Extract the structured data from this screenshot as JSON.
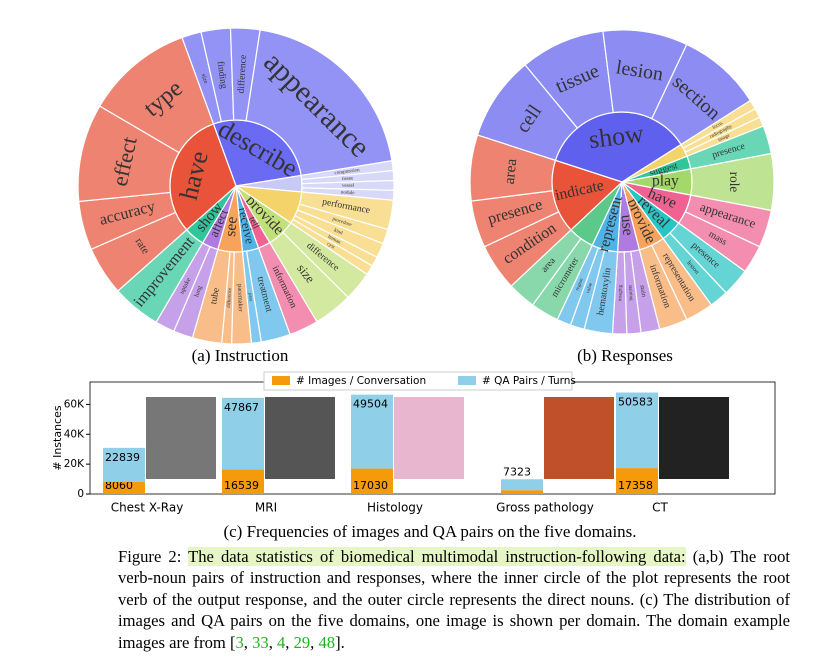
{
  "chart_data": [
    {
      "type": "sunburst",
      "caption": "(a) Instruction",
      "inner": [
        {
          "name": "describe",
          "color": "#6a6af2",
          "value": 28,
          "children": [
            {
              "name": "size",
              "value": 2
            },
            {
              "name": "finding",
              "value": 3
            },
            {
              "name": "difference",
              "value": 3
            },
            {
              "name": "appearance",
              "value": 20
            }
          ]
        },
        {
          "name": null,
          "color": "#c9c9f5",
          "value": 4,
          "children": [
            {
              "name": "compression",
              "value": 1
            },
            {
              "name": "tissue",
              "value": 1
            },
            {
              "name": "vessel",
              "value": 1
            },
            {
              "name": "nodule",
              "value": 1
            }
          ]
        },
        {
          "name": null,
          "color": "#f5d36b",
          "value": 8,
          "children": [
            {
              "name": "performance",
              "value": 3
            },
            {
              "name": "procedure",
              "value": 1.5
            },
            {
              "name": "kind",
              "value": 1.5
            },
            {
              "name": "human",
              "value": 1
            },
            {
              "name": "cyst",
              "value": 1
            }
          ]
        },
        {
          "name": "provide",
          "color": "#c2e07a",
          "value": 7,
          "children": [
            {
              "name": "difference",
              "value": 3
            },
            {
              "name": "size",
              "value": 4
            }
          ]
        },
        {
          "name": "tell",
          "color": "#f06292",
          "value": 3,
          "children": [
            {
              "name": "information",
              "value": 3
            }
          ]
        },
        {
          "name": "receive",
          "color": "#4fb3e8",
          "value": 4,
          "children": [
            {
              "name": "treatment",
              "value": 3
            },
            {
              "name": "pass",
              "value": 1
            }
          ]
        },
        {
          "name": "see",
          "color": "#f7a35c",
          "value": 6,
          "children": [
            {
              "name": "pacemaker",
              "value": 2
            },
            {
              "name": "difference",
              "value": 1
            },
            {
              "name": "tube",
              "value": 3
            }
          ]
        },
        {
          "name": "affect",
          "color": "#b07be0",
          "value": 4,
          "children": [
            {
              "name": "lung",
              "value": 2
            },
            {
              "name": "uptake",
              "value": 2
            }
          ]
        },
        {
          "name": "show",
          "color": "#2fc79a",
          "value": 5,
          "children": [
            {
              "name": "improvement",
              "value": 5
            }
          ]
        },
        {
          "name": "have",
          "color": "#e8533a",
          "value": 31,
          "children": [
            {
              "name": "rate",
              "value": 5
            },
            {
              "name": "accuracy",
              "value": 5
            },
            {
              "name": "effect",
              "value": 10
            },
            {
              "name": "type",
              "value": 11
            }
          ]
        }
      ]
    },
    {
      "type": "sunburst",
      "caption": "(b) Responses",
      "inner": [
        {
          "name": "show",
          "color": "#6060ee",
          "value": 36,
          "children": [
            {
              "name": "cell",
              "value": 9
            },
            {
              "name": "tissue",
              "value": 9
            },
            {
              "name": "lesion",
              "value": 9
            },
            {
              "name": "section",
              "value": 9
            }
          ]
        },
        {
          "name": null,
          "color": "#f5d36b",
          "value": 3,
          "children": [
            {
              "name": "focus",
              "value": 1
            },
            {
              "name": "radiography",
              "value": 1
            },
            {
              "name": "image",
              "value": 1
            }
          ]
        },
        {
          "name": "suggest",
          "color": "#2fc79a",
          "value": 3,
          "children": [
            {
              "name": "presence",
              "value": 3
            }
          ]
        },
        {
          "name": "play",
          "color": "#a5d86a",
          "value": 6,
          "children": [
            {
              "name": "role",
              "value": 6
            }
          ]
        },
        {
          "name": "have",
          "color": "#f06292",
          "value": 7,
          "children": [
            {
              "name": "appearance",
              "value": 4
            },
            {
              "name": "mass",
              "value": 3
            }
          ]
        },
        {
          "name": "reveal",
          "color": "#29c4c4",
          "value": 5,
          "children": [
            {
              "name": "presence",
              "value": 3
            },
            {
              "name": "lesion",
              "value": 2
            }
          ]
        },
        {
          "name": "provide",
          "color": "#f7a35c",
          "value": 6,
          "children": [
            {
              "name": "representation",
              "value": 3
            },
            {
              "name": "information",
              "value": 3
            }
          ]
        },
        {
          "name": "use",
          "color": "#b07be0",
          "value": 5,
          "children": [
            {
              "name": "stain",
              "value": 2
            },
            {
              "name": "staining",
              "value": 1.5
            },
            {
              "name": "imaging",
              "value": 1.5
            }
          ]
        },
        {
          "name": "represent",
          "color": "#4fb3e8",
          "value": 6,
          "children": [
            {
              "name": "hematoxylin",
              "value": 3
            },
            {
              "name": "value",
              "value": 1.5
            },
            {
              "name": "region",
              "value": 1.5
            }
          ]
        },
        {
          "name": null,
          "color": "#5cc98a",
          "value": 6,
          "children": [
            {
              "name": "micrometer",
              "value": 3
            },
            {
              "name": "area",
              "value": 3
            }
          ]
        },
        {
          "name": "indicate",
          "color": "#e8533a",
          "value": 17,
          "children": [
            {
              "name": "condition",
              "value": 5
            },
            {
              "name": "presence",
              "value": 5
            },
            {
              "name": "area",
              "value": 7
            }
          ]
        }
      ]
    },
    {
      "type": "bar",
      "stacked": true,
      "caption": "(c) Frequencies of images and QA pairs on the five domains.",
      "y_label": "# Instances",
      "categories": [
        "Chest X-Ray",
        "MRI",
        "Histology",
        "Gross pathology",
        "CT"
      ],
      "series": [
        {
          "name": "# Images / Conversation",
          "color": "#f59a0a",
          "values": [
            8060,
            16539,
            17030,
            2552,
            17358
          ]
        },
        {
          "name": "# QA Pairs / Turns",
          "color": "#8fcfe8",
          "values": [
            22839,
            47867,
            49504,
            7323,
            50583
          ]
        }
      ],
      "ylim": [
        0,
        75000
      ],
      "yticks": [
        0,
        {
          "value": 20000,
          "label": "20K"
        },
        {
          "value": 40000,
          "label": "40K"
        },
        {
          "value": 60000,
          "label": "60K"
        }
      ],
      "legend": "top"
    }
  ],
  "caption": {
    "label": "Figure 2:",
    "highlight": "The data statistics of biomedical multimodal instruction-following data:",
    "text": "(a,b) The root verb-noun pairs of instruction and responses, where the inner circle of the plot represents the root verb of the output response, and the outer circle represents the direct nouns. (c) The distribution of images and QA pairs on the five domains, one image is shown per domain. The domain example images are from",
    "refs_open": "[",
    "refs": [
      "3",
      "33",
      "4",
      "29",
      "48"
    ],
    "separator": ", ",
    "refs_close": "]."
  }
}
